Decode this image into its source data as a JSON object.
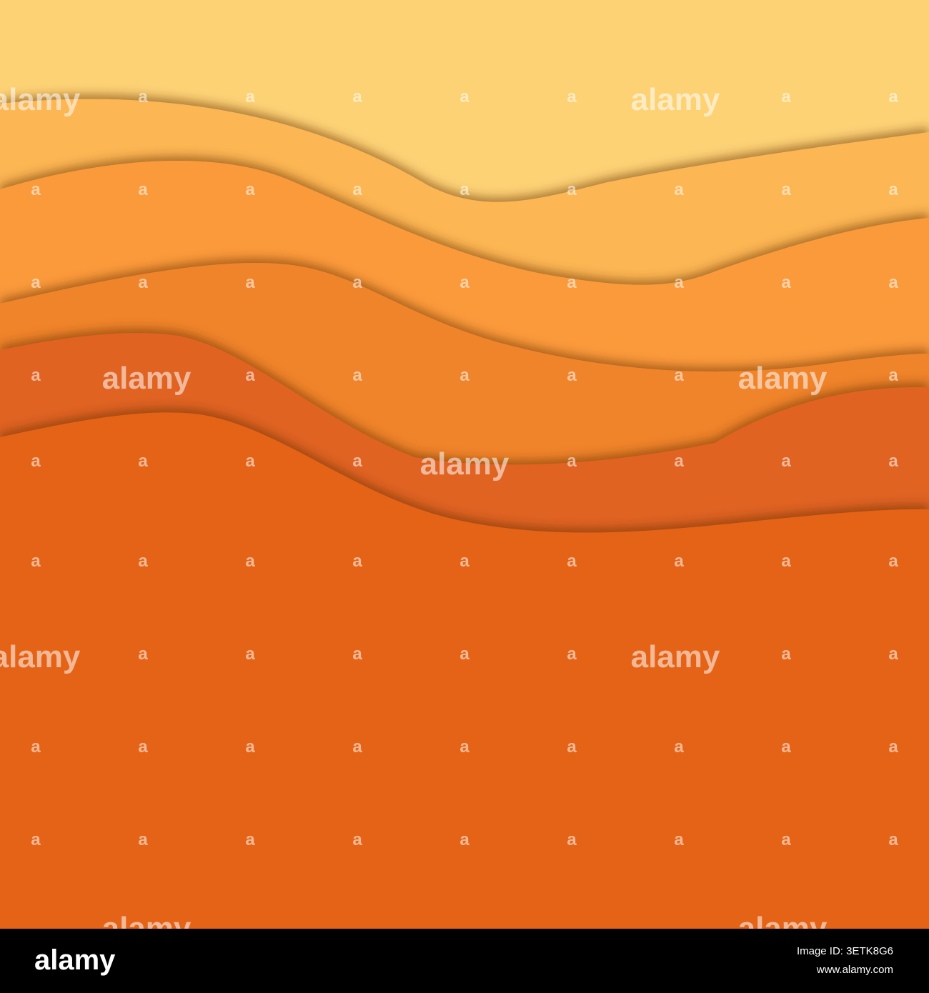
{
  "watermark": {
    "logo": "alamy",
    "mark": "a"
  },
  "footer": {
    "logo": "alamy",
    "image_id": "Image ID: 3ETK8G6",
    "url": "www.alamy.com"
  }
}
